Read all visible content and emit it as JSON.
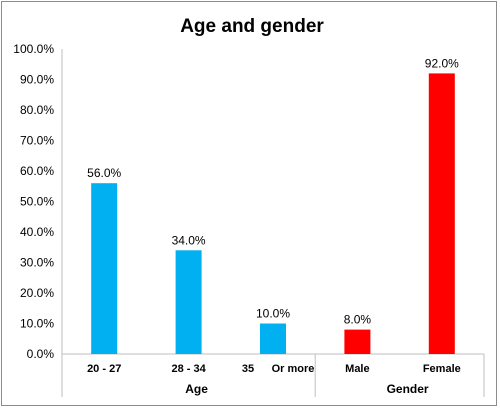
{
  "chart_data": {
    "type": "bar",
    "title": "Age and gender",
    "xlabel": "",
    "ylabel": "",
    "ylim": [
      0,
      100
    ],
    "yticks": [
      "0.0%",
      "10.0%",
      "20.0%",
      "30.0%",
      "40.0%",
      "50.0%",
      "60.0%",
      "70.0%",
      "80.0%",
      "90.0%",
      "100.0%"
    ],
    "groups": [
      {
        "name": "Age",
        "color": "#00b0f0",
        "categories": [
          {
            "label": "20 - 27",
            "value": 56.0,
            "value_label": "56.0%"
          },
          {
            "label": "28 - 34",
            "value": 34.0,
            "value_label": "34.0%"
          },
          {
            "label_parts": [
              "35",
              "Or more"
            ],
            "value": 10.0,
            "value_label": "10.0%"
          }
        ]
      },
      {
        "name": "Gender",
        "color": "#ff0000",
        "categories": [
          {
            "label": "Male",
            "value": 8.0,
            "value_label": "8.0%"
          },
          {
            "label": "Female",
            "value": 92.0,
            "value_label": "92.0%"
          }
        ]
      }
    ],
    "grid": false,
    "legend": "none"
  }
}
